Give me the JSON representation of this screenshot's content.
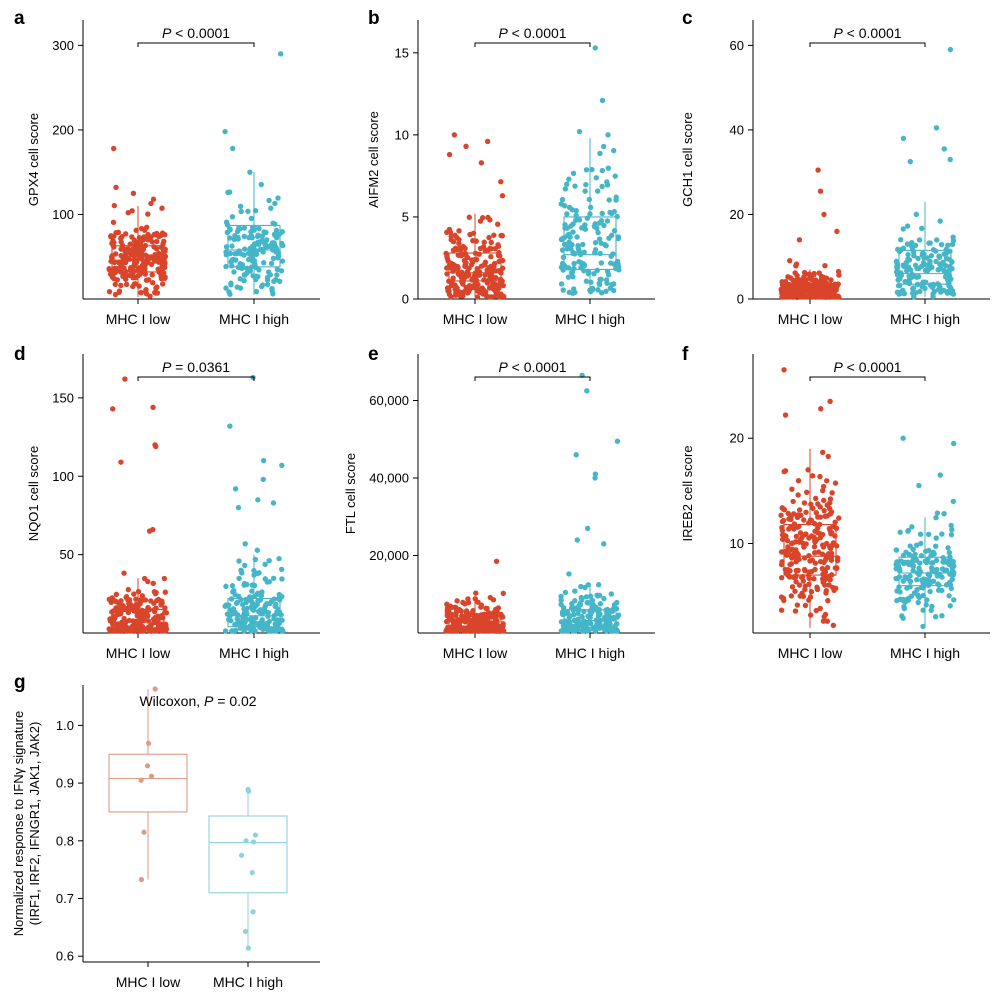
{
  "chart_data": [
    {
      "panel": "a",
      "type": "box-strip",
      "ylabel": "GPX4 cell score",
      "categories": [
        "MHC I low",
        "MHC I high"
      ],
      "yticks": [
        "100",
        "200",
        "300"
      ],
      "ytick_values": [
        100,
        200,
        300
      ],
      "ylim": [
        0,
        330
      ],
      "annotation": {
        "italic": "P",
        "text": " < 0.0001"
      },
      "colors": [
        "#d9452b",
        "#45b5c8"
      ],
      "boxes": [
        {
          "q1": 32,
          "median": 46,
          "q3": 63,
          "whisker_low": 2,
          "whisker_high": 110
        },
        {
          "q1": 38,
          "median": 58,
          "q3": 87,
          "whisker_low": 5,
          "whisker_high": 150
        }
      ],
      "points": [
        {
          "n": 230,
          "center": 46,
          "spread": 22,
          "min": 2,
          "max": 140,
          "outliers": [
            178,
            132,
            125,
            118
          ]
        },
        {
          "n": 160,
          "center": 60,
          "spread": 32,
          "min": 5,
          "max": 152,
          "outliers": [
            290,
            198,
            178,
            150
          ]
        }
      ]
    },
    {
      "panel": "b",
      "type": "box-strip",
      "ylabel": "AIFM2 cell score",
      "categories": [
        "MHC I low",
        "MHC I high"
      ],
      "yticks": [
        "0",
        "5",
        "10",
        "15"
      ],
      "ytick_values": [
        0,
        5,
        10,
        15
      ],
      "ylim": [
        0,
        17
      ],
      "annotation": {
        "italic": "P",
        "text": " < 0.0001"
      },
      "colors": [
        "#d9452b",
        "#45b5c8"
      ],
      "boxes": [
        {
          "q1": 1.1,
          "median": 1.6,
          "q3": 2.8,
          "whisker_low": 0,
          "whisker_high": 5.2
        },
        {
          "q1": 1.8,
          "median": 2.7,
          "q3": 5.0,
          "whisker_low": 0.3,
          "whisker_high": 9.8
        }
      ],
      "points": [
        {
          "n": 230,
          "center": 1.7,
          "spread": 1.5,
          "min": 0,
          "max": 8,
          "outliers": [
            10,
            9.6,
            9.3,
            8.8,
            8.3
          ]
        },
        {
          "n": 160,
          "center": 3.3,
          "spread": 2.3,
          "min": 0.3,
          "max": 10,
          "outliers": [
            15.3,
            12.1,
            10.2,
            10.0
          ]
        }
      ]
    },
    {
      "panel": "c",
      "type": "box-strip",
      "ylabel": "GCH1 cell score",
      "categories": [
        "MHC I low",
        "MHC I high"
      ],
      "yticks": [
        "0",
        "20",
        "40",
        "60"
      ],
      "ytick_values": [
        0,
        20,
        40,
        60
      ],
      "ylim": [
        0,
        66
      ],
      "annotation": {
        "italic": "P",
        "text": " < 0.0001"
      },
      "colors": [
        "#d9452b",
        "#45b5c8"
      ],
      "boxes": [
        {
          "q1": 1.2,
          "median": 2.0,
          "q3": 3.5,
          "whisker_low": 0,
          "whisker_high": 7
        },
        {
          "q1": 3.5,
          "median": 6.0,
          "q3": 11.5,
          "whisker_low": 0.5,
          "whisker_high": 23
        }
      ],
      "points": [
        {
          "n": 230,
          "center": 2.2,
          "spread": 2.2,
          "min": 0,
          "max": 12,
          "outliers": [
            30.5,
            25.5,
            20,
            16,
            14
          ]
        },
        {
          "n": 160,
          "center": 7,
          "spread": 5,
          "min": 0.5,
          "max": 25,
          "outliers": [
            59,
            40.5,
            38,
            35.5,
            33,
            32.5
          ]
        }
      ]
    },
    {
      "panel": "d",
      "type": "box-strip",
      "ylabel": "NQO1 cell score",
      "categories": [
        "MHC I low",
        "MHC I high"
      ],
      "yticks": [
        "50",
        "100",
        "150"
      ],
      "ytick_values": [
        50,
        100,
        150
      ],
      "ylim": [
        0,
        178
      ],
      "annotation": {
        "italic": "P",
        "text": " = 0.0361"
      },
      "colors": [
        "#d9452b",
        "#45b5c8"
      ],
      "boxes": [
        {
          "q1": 3,
          "median": 7,
          "q3": 15,
          "whisker_low": 0,
          "whisker_high": 35
        },
        {
          "q1": 4,
          "median": 11,
          "q3": 22,
          "whisker_low": 0,
          "whisker_high": 50
        }
      ],
      "points": [
        {
          "n": 240,
          "center": 9,
          "spread": 12,
          "min": 0,
          "max": 65,
          "outliers": [
            162,
            144,
            143,
            120,
            119,
            109,
            66,
            65
          ]
        },
        {
          "n": 170,
          "center": 14,
          "spread": 16,
          "min": 0,
          "max": 60,
          "outliers": [
            163,
            132,
            110,
            107,
            98,
            92,
            85,
            83,
            80
          ]
        }
      ]
    },
    {
      "panel": "e",
      "type": "box-strip",
      "ylabel": "FTL cell score",
      "categories": [
        "MHC I low",
        "MHC I high"
      ],
      "yticks": [
        "20,000",
        "40,000",
        "60,000"
      ],
      "ytick_values": [
        20000,
        40000,
        60000
      ],
      "ylim": [
        0,
        72000
      ],
      "annotation": {
        "italic": "P",
        "text": " < 0.0001"
      },
      "colors": [
        "#d9452b",
        "#45b5c8"
      ],
      "boxes": [
        {
          "q1": 800,
          "median": 1800,
          "q3": 3600,
          "whisker_low": 0,
          "whisker_high": 8500
        },
        {
          "q1": 1500,
          "median": 3200,
          "q3": 6000,
          "whisker_low": 0,
          "whisker_high": 12000
        }
      ],
      "points": [
        {
          "n": 240,
          "center": 2200,
          "spread": 2800,
          "min": 0,
          "max": 14000,
          "outliers": [
            18500
          ]
        },
        {
          "n": 170,
          "center": 3800,
          "spread": 4200,
          "min": 0,
          "max": 18000,
          "outliers": [
            66500,
            62500,
            49500,
            46000,
            41000,
            40000,
            27000,
            24000,
            23000
          ]
        }
      ]
    },
    {
      "panel": "f",
      "type": "box-strip",
      "ylabel": "IREB2 cell score",
      "categories": [
        "MHC I low",
        "MHC I high"
      ],
      "yticks": [
        "10",
        "20"
      ],
      "ytick_values": [
        10,
        20
      ],
      "ylim": [
        1.5,
        28
      ],
      "annotation": {
        "italic": "P",
        "text": " < 0.0001"
      },
      "colors": [
        "#d9452b",
        "#45b5c8"
      ],
      "boxes": [
        {
          "q1": 7,
          "median": 8.8,
          "q3": 11.8,
          "whisker_low": 2,
          "whisker_high": 19
        },
        {
          "q1": 6,
          "median": 7.2,
          "q3": 8.7,
          "whisker_low": 2,
          "whisker_high": 12.5
        }
      ],
      "points": [
        {
          "n": 240,
          "center": 9.3,
          "spread": 3.3,
          "min": 2,
          "max": 22,
          "outliers": [
            26.5,
            23.5,
            22.8,
            22.2
          ]
        },
        {
          "n": 170,
          "center": 7.3,
          "spread": 2.1,
          "min": 2,
          "max": 13,
          "outliers": [
            20,
            19.5,
            16.5,
            15.5,
            14
          ]
        }
      ]
    },
    {
      "panel": "g",
      "type": "box-strip",
      "ylabel": "Normalized response to IFNγ signature",
      "ylabel2": "(IRF1, IRF2, IFNGR1, JAK1, JAK2)",
      "categories": [
        "MHC I low",
        "MHC I high"
      ],
      "yticks": [
        "0.6",
        "0.7",
        "0.8",
        "0.9",
        "1.0"
      ],
      "ytick_values": [
        0.6,
        0.7,
        0.8,
        0.9,
        1.0
      ],
      "ylim": [
        0.59,
        1.07
      ],
      "annotation": {
        "italic": "",
        "prefix": "Wilcoxon, ",
        "italic2": "P",
        "text": " = 0.02"
      },
      "colors": [
        "#df9a86",
        "#8fd1dd"
      ],
      "boxes": [
        {
          "q1": 0.85,
          "median": 0.908,
          "q3": 0.95,
          "whisker_low": 0.733,
          "whisker_high": 1.07
        },
        {
          "q1": 0.71,
          "median": 0.797,
          "q3": 0.843,
          "whisker_low": 0.614,
          "whisker_high": 0.889
        }
      ],
      "points": [
        {
          "n": 0,
          "explicit": [
            0.969,
            0.93,
            0.905,
            0.912,
            0.815,
            0.733,
            1.075
          ]
        },
        {
          "n": 0,
          "explicit": [
            0.889,
            0.886,
            0.81,
            0.8,
            0.798,
            0.775,
            0.745,
            0.677,
            0.643,
            0.614
          ]
        }
      ]
    }
  ]
}
